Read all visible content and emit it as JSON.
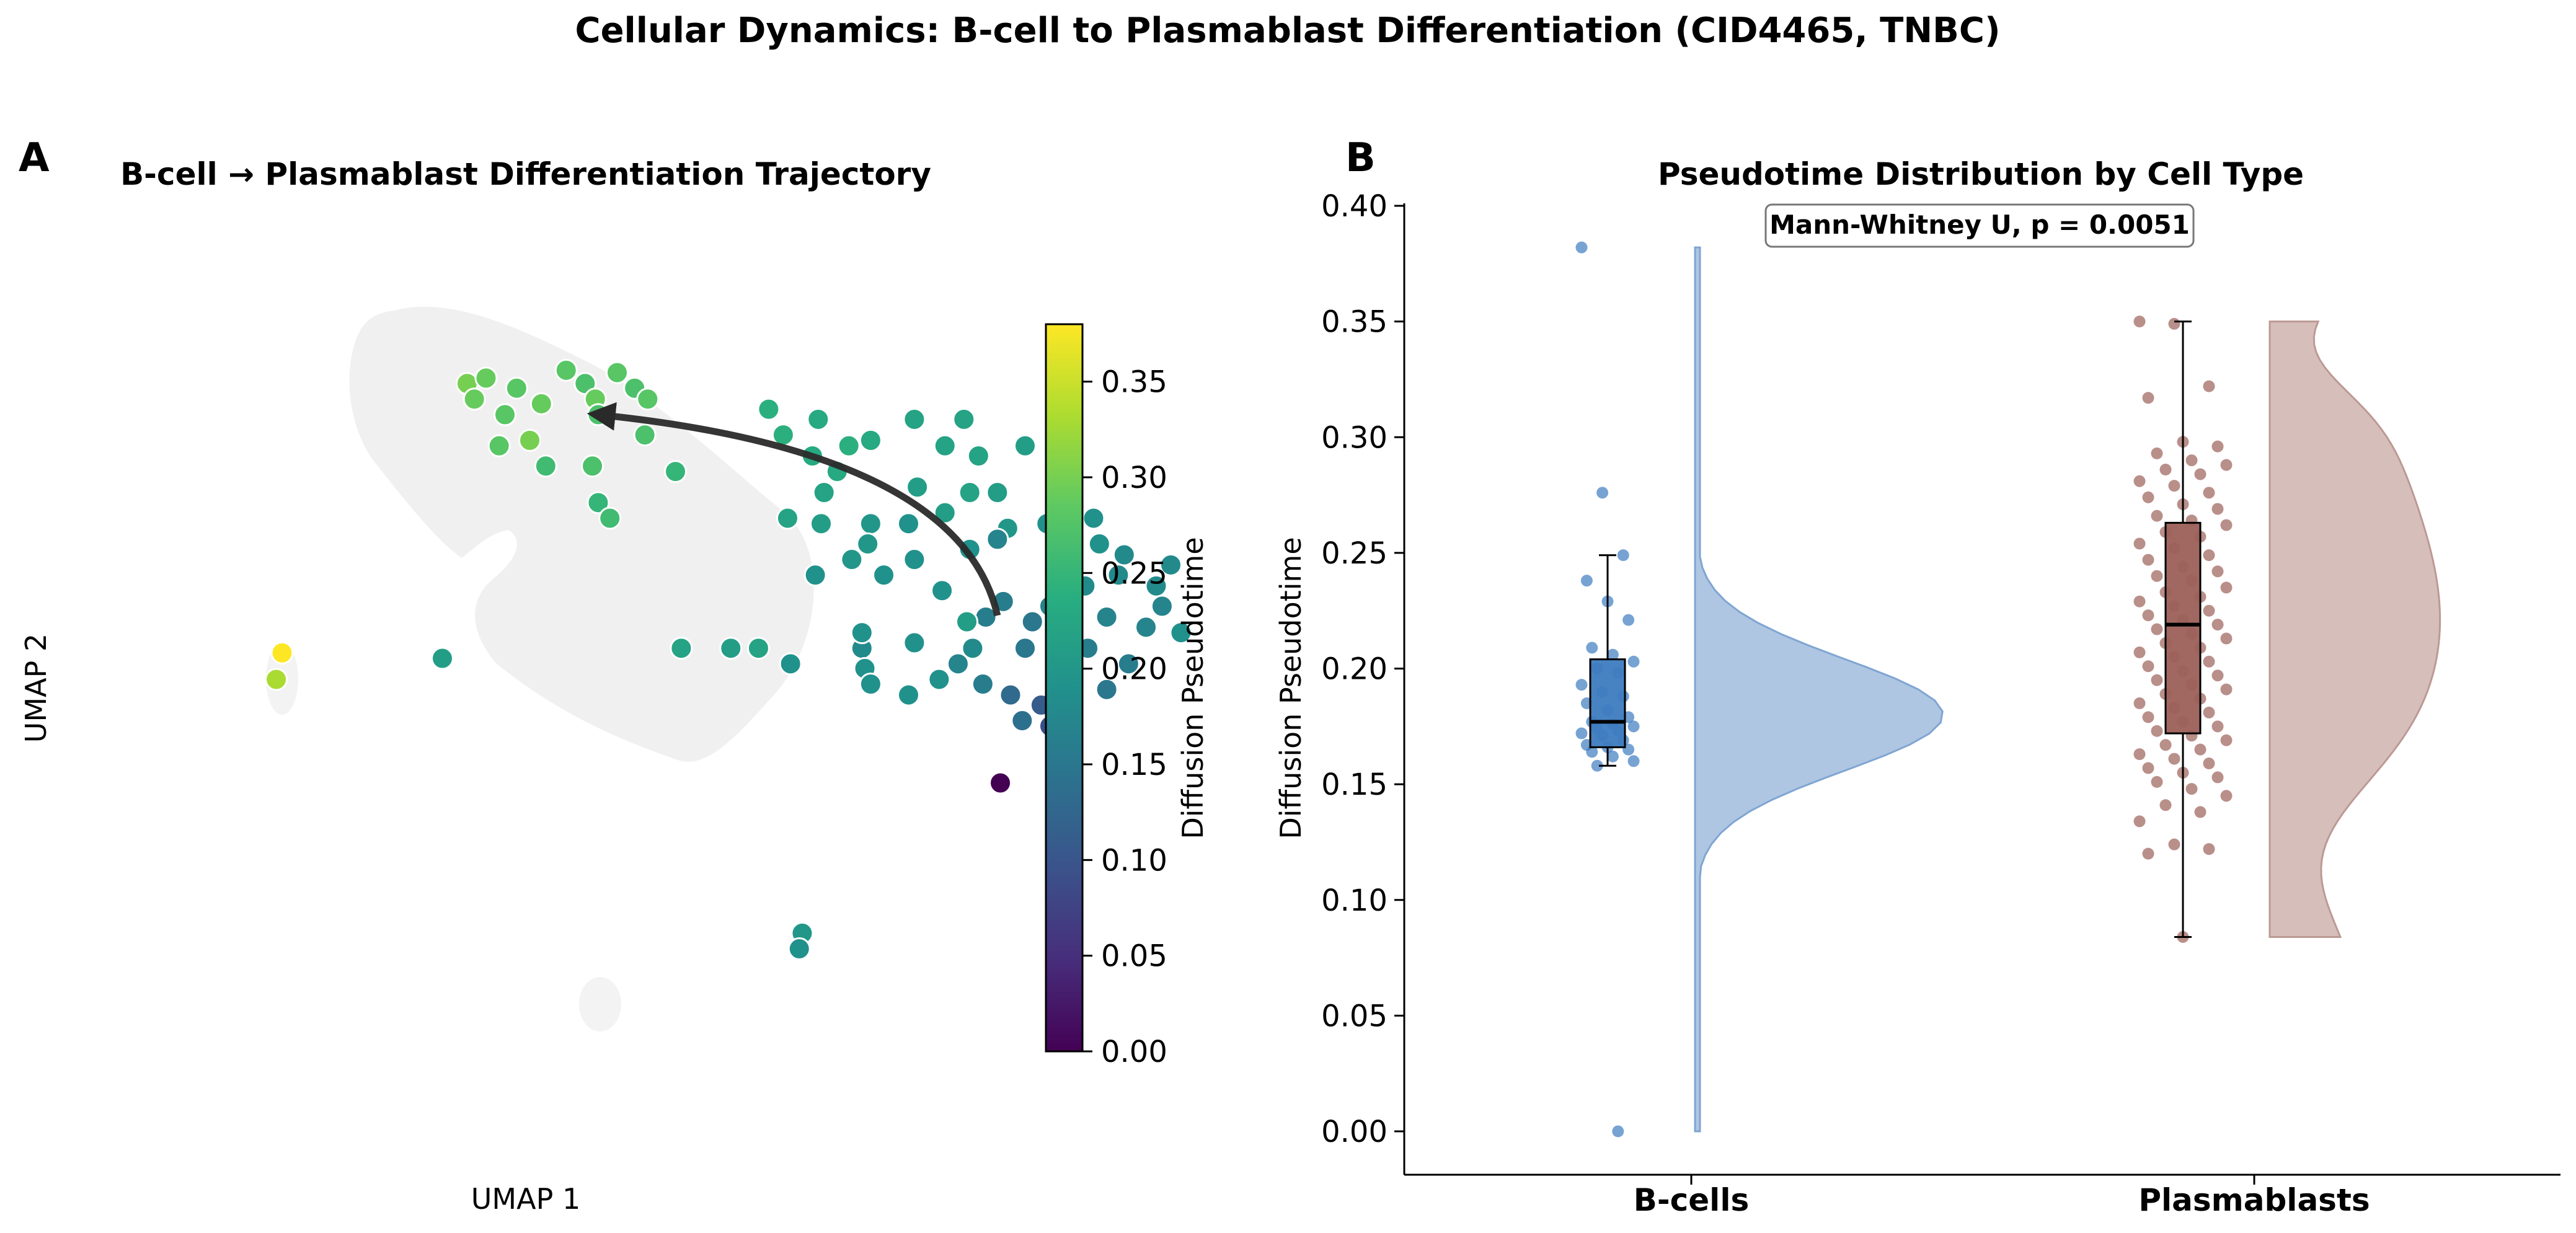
{
  "figure": {
    "suptitle": "Cellular Dynamics: B-cell to Plasmablast Differentiation (CID4465, TNBC)"
  },
  "colors": {
    "bcell": "#3d7cc0",
    "plasmablast": "#9b6058",
    "bcell_violin": "#aec6e2",
    "plasmablast_violin": "#d6bfbb",
    "density_region": "#f0f0f0",
    "arrow": "#2a2a2a"
  },
  "chart_data": [
    {
      "panel": "A",
      "type": "scatter",
      "panel_label": "A",
      "title": "B-cell → Plasmablast Differentiation Trajectory",
      "xlabel": "UMAP 1",
      "ylabel": "UMAP 2",
      "axes_visible": false,
      "colorbar": {
        "label": "Diffusion Pseudotime",
        "colormap": "viridis",
        "range": [
          0.0,
          0.38
        ],
        "ticks": [
          "0.00",
          "0.05",
          "0.10",
          "0.15",
          "0.20",
          "0.25",
          "0.30",
          "0.35"
        ]
      },
      "trajectory_arrow": {
        "from": [
          4.87,
          2.15
        ],
        "to": [
          2.13,
          4.73
        ],
        "direction": "B-cell to Plasmablast"
      },
      "points": [
        {
          "x": 1.23,
          "y": 5.13,
          "t": 0.3
        },
        {
          "x": 1.36,
          "y": 5.2,
          "t": 0.29
        },
        {
          "x": 1.57,
          "y": 5.07,
          "t": 0.28
        },
        {
          "x": 1.74,
          "y": 4.87,
          "t": 0.29
        },
        {
          "x": 1.91,
          "y": 5.3,
          "t": 0.28
        },
        {
          "x": 2.04,
          "y": 5.13,
          "t": 0.27
        },
        {
          "x": 2.11,
          "y": 4.93,
          "t": 0.29
        },
        {
          "x": 2.26,
          "y": 5.27,
          "t": 0.28
        },
        {
          "x": 2.38,
          "y": 5.07,
          "t": 0.27
        },
        {
          "x": 2.47,
          "y": 4.93,
          "t": 0.28
        },
        {
          "x": 1.28,
          "y": 4.93,
          "t": 0.29
        },
        {
          "x": 1.49,
          "y": 4.73,
          "t": 0.28
        },
        {
          "x": 2.13,
          "y": 4.73,
          "t": 0.27
        },
        {
          "x": 2.45,
          "y": 4.47,
          "t": 0.27
        },
        {
          "x": 1.66,
          "y": 4.4,
          "t": 0.3
        },
        {
          "x": 1.45,
          "y": 4.33,
          "t": 0.28
        },
        {
          "x": 2.09,
          "y": 4.07,
          "t": 0.27
        },
        {
          "x": 1.77,
          "y": 4.07,
          "t": 0.26
        },
        {
          "x": 2.13,
          "y": 3.6,
          "t": 0.25
        },
        {
          "x": 2.21,
          "y": 3.4,
          "t": 0.26
        },
        {
          "x": 2.66,
          "y": 4.0,
          "t": 0.25
        },
        {
          "x": 3.3,
          "y": 4.8,
          "t": 0.24
        },
        {
          "x": 3.64,
          "y": 4.67,
          "t": 0.23
        },
        {
          "x": 3.85,
          "y": 4.33,
          "t": 0.24
        },
        {
          "x": 3.4,
          "y": 4.47,
          "t": 0.24
        },
        {
          "x": 4.0,
          "y": 4.4,
          "t": 0.23
        },
        {
          "x": 3.6,
          "y": 4.2,
          "t": 0.23
        },
        {
          "x": 3.77,
          "y": 4.0,
          "t": 0.23
        },
        {
          "x": 4.3,
          "y": 4.67,
          "t": 0.22
        },
        {
          "x": 4.64,
          "y": 4.67,
          "t": 0.22
        },
        {
          "x": 4.51,
          "y": 4.33,
          "t": 0.22
        },
        {
          "x": 4.74,
          "y": 4.2,
          "t": 0.22
        },
        {
          "x": 4.32,
          "y": 3.8,
          "t": 0.21
        },
        {
          "x": 4.68,
          "y": 3.73,
          "t": 0.22
        },
        {
          "x": 4.87,
          "y": 3.73,
          "t": 0.21
        },
        {
          "x": 5.06,
          "y": 4.33,
          "t": 0.21
        },
        {
          "x": 4.51,
          "y": 3.47,
          "t": 0.21
        },
        {
          "x": 4.94,
          "y": 3.27,
          "t": 0.2
        },
        {
          "x": 4.0,
          "y": 3.33,
          "t": 0.2
        },
        {
          "x": 4.26,
          "y": 3.33,
          "t": 0.19
        },
        {
          "x": 3.66,
          "y": 3.33,
          "t": 0.21
        },
        {
          "x": 3.98,
          "y": 3.07,
          "t": 0.2
        },
        {
          "x": 3.43,
          "y": 3.4,
          "t": 0.22
        },
        {
          "x": 3.87,
          "y": 2.87,
          "t": 0.2
        },
        {
          "x": 4.3,
          "y": 2.87,
          "t": 0.19
        },
        {
          "x": 3.62,
          "y": 2.67,
          "t": 0.19
        },
        {
          "x": 4.09,
          "y": 2.67,
          "t": 0.19
        },
        {
          "x": 4.68,
          "y": 3.0,
          "t": 0.19
        },
        {
          "x": 4.87,
          "y": 3.13,
          "t": 0.17
        },
        {
          "x": 5.21,
          "y": 3.33,
          "t": 0.19
        },
        {
          "x": 5.53,
          "y": 3.4,
          "t": 0.19
        },
        {
          "x": 5.57,
          "y": 3.07,
          "t": 0.19
        },
        {
          "x": 5.28,
          "y": 2.93,
          "t": 0.18
        },
        {
          "x": 5.74,
          "y": 2.93,
          "t": 0.18
        },
        {
          "x": 5.7,
          "y": 2.67,
          "t": 0.18
        },
        {
          "x": 5.47,
          "y": 2.53,
          "t": 0.18
        },
        {
          "x": 5.96,
          "y": 2.53,
          "t": 0.18
        },
        {
          "x": 6.06,
          "y": 2.8,
          "t": 0.18
        },
        {
          "x": 6.0,
          "y": 2.27,
          "t": 0.17
        },
        {
          "x": 5.62,
          "y": 2.13,
          "t": 0.17
        },
        {
          "x": 5.89,
          "y": 2.0,
          "t": 0.17
        },
        {
          "x": 5.23,
          "y": 2.27,
          "t": 0.17
        },
        {
          "x": 4.79,
          "y": 2.13,
          "t": 0.16
        },
        {
          "x": 4.91,
          "y": 2.33,
          "t": 0.16
        },
        {
          "x": 5.11,
          "y": 2.07,
          "t": 0.15
        },
        {
          "x": 5.32,
          "y": 1.93,
          "t": 0.16
        },
        {
          "x": 5.49,
          "y": 1.73,
          "t": 0.16
        },
        {
          "x": 5.28,
          "y": 1.53,
          "t": 0.16
        },
        {
          "x": 5.06,
          "y": 1.73,
          "t": 0.15
        },
        {
          "x": 4.7,
          "y": 1.73,
          "t": 0.18
        },
        {
          "x": 4.3,
          "y": 1.8,
          "t": 0.19
        },
        {
          "x": 3.94,
          "y": 1.73,
          "t": 0.18
        },
        {
          "x": 3.96,
          "y": 1.47,
          "t": 0.19
        },
        {
          "x": 4.6,
          "y": 1.53,
          "t": 0.17
        },
        {
          "x": 4.77,
          "y": 1.27,
          "t": 0.16
        },
        {
          "x": 4.96,
          "y": 1.13,
          "t": 0.13
        },
        {
          "x": 5.17,
          "y": 1.0,
          "t": 0.11
        },
        {
          "x": 5.04,
          "y": 0.8,
          "t": 0.14
        },
        {
          "x": 5.23,
          "y": 0.73,
          "t": 0.09
        },
        {
          "x": 5.62,
          "y": 1.2,
          "t": 0.15
        },
        {
          "x": 3.94,
          "y": 1.93,
          "t": 0.19
        },
        {
          "x": 3.45,
          "y": 1.53,
          "t": 0.19
        },
        {
          "x": 3.04,
          "y": 1.73,
          "t": 0.21
        },
        {
          "x": 2.7,
          "y": 1.73,
          "t": 0.22
        },
        {
          "x": 3.23,
          "y": 1.73,
          "t": 0.22
        },
        {
          "x": 4.47,
          "y": 1.33,
          "t": 0.19
        },
        {
          "x": 4.26,
          "y": 1.13,
          "t": 0.19
        },
        {
          "x": 4.0,
          "y": 1.27,
          "t": 0.19
        },
        {
          "x": 5.77,
          "y": 1.53,
          "t": 0.16
        },
        {
          "x": 6.13,
          "y": 1.93,
          "t": 0.19
        },
        {
          "x": 4.66,
          "y": 2.07,
          "t": 0.21
        },
        {
          "x": 4.49,
          "y": 2.47,
          "t": 0.19
        },
        {
          "x": 3.68,
          "y": 3.73,
          "t": 0.22
        },
        {
          "x": 1.06,
          "y": 1.6,
          "t": 0.21
        },
        {
          "x": -0.04,
          "y": 1.67,
          "t": 0.38
        },
        {
          "x": -0.08,
          "y": 1.33,
          "t": 0.33
        },
        {
          "x": 4.89,
          "y": 0.0,
          "t": 0.0
        },
        {
          "x": 3.53,
          "y": -1.93,
          "t": 0.2
        },
        {
          "x": 3.51,
          "y": -2.13,
          "t": 0.19
        }
      ]
    },
    {
      "panel": "B",
      "type": "box",
      "panel_label": "B",
      "title": "Pseudotime Distribution by Cell Type",
      "annotation": "Mann-Whitney U, p = 0.0051",
      "xlabel": "",
      "ylabel": "Diffusion Pseudotime",
      "ylim": [
        -0.019,
        0.402
      ],
      "yticks": [
        "0.00",
        "0.05",
        "0.10",
        "0.15",
        "0.20",
        "0.25",
        "0.30",
        "0.35",
        "0.40"
      ],
      "categories": [
        "B-cells",
        "Plasmablasts"
      ],
      "series": [
        {
          "name": "B-cells",
          "box": {
            "q1": 0.166,
            "median": 0.177,
            "q3": 0.204,
            "whisker_low": 0.158,
            "whisker_high": 0.249
          },
          "points": [
            0.382,
            0.276,
            0.249,
            0.238,
            0.229,
            0.221,
            0.209,
            0.206,
            0.203,
            0.2,
            0.198,
            0.193,
            0.19,
            0.188,
            0.185,
            0.182,
            0.179,
            0.177,
            0.176,
            0.175,
            0.174,
            0.173,
            0.172,
            0.171,
            0.169,
            0.167,
            0.166,
            0.165,
            0.164,
            0.162,
            0.16,
            0.158,
            0.0
          ],
          "violin": {
            "min": 0.0,
            "max": 0.382,
            "mode": 0.18
          }
        },
        {
          "name": "Plasmablasts",
          "box": {
            "q1": 0.172,
            "median": 0.219,
            "q3": 0.263,
            "whisker_low": 0.084,
            "whisker_high": 0.35
          },
          "points": [
            0.35,
            0.349,
            0.322,
            0.317,
            0.298,
            0.296,
            0.293,
            0.29,
            0.288,
            0.286,
            0.284,
            0.281,
            0.279,
            0.276,
            0.274,
            0.271,
            0.269,
            0.266,
            0.264,
            0.262,
            0.259,
            0.257,
            0.254,
            0.252,
            0.249,
            0.247,
            0.244,
            0.242,
            0.24,
            0.238,
            0.235,
            0.233,
            0.231,
            0.229,
            0.227,
            0.225,
            0.223,
            0.221,
            0.219,
            0.217,
            0.215,
            0.213,
            0.211,
            0.209,
            0.207,
            0.205,
            0.203,
            0.201,
            0.199,
            0.197,
            0.195,
            0.193,
            0.191,
            0.189,
            0.187,
            0.185,
            0.183,
            0.181,
            0.179,
            0.177,
            0.175,
            0.173,
            0.171,
            0.169,
            0.167,
            0.165,
            0.163,
            0.161,
            0.159,
            0.157,
            0.155,
            0.153,
            0.151,
            0.148,
            0.145,
            0.141,
            0.138,
            0.134,
            0.124,
            0.122,
            0.12,
            0.084
          ],
          "violin": {
            "min": 0.084,
            "max": 0.35,
            "mode": 0.22
          }
        }
      ]
    }
  ]
}
